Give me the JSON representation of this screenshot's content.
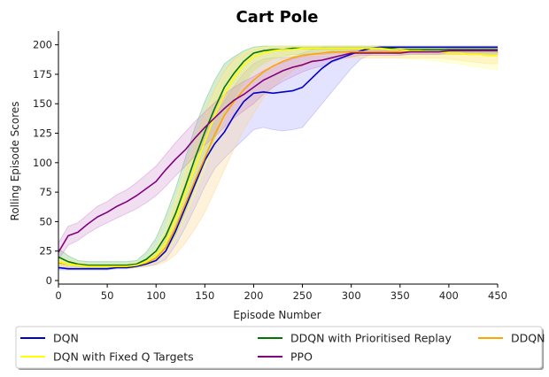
{
  "chart_data": {
    "type": "line",
    "title": "Cart Pole",
    "xlabel": "Episode Number",
    "ylabel": "Rolling Episode Scores",
    "xlim": [
      0,
      450
    ],
    "ylim": [
      -3,
      211
    ],
    "xticks": [
      0,
      50,
      100,
      150,
      200,
      250,
      300,
      350,
      400,
      450
    ],
    "yticks": [
      0,
      25,
      50,
      75,
      100,
      125,
      150,
      175,
      200
    ],
    "grid": false,
    "legend_position": "bottom",
    "series": [
      {
        "name": "DQN",
        "color": "#0000cc",
        "band_color": "#9999ff",
        "x": [
          0,
          10,
          20,
          30,
          40,
          50,
          60,
          70,
          80,
          90,
          100,
          110,
          120,
          130,
          140,
          150,
          160,
          170,
          180,
          190,
          200,
          210,
          220,
          230,
          240,
          250,
          260,
          270,
          280,
          290,
          300,
          310,
          320,
          330,
          340,
          350,
          360,
          370,
          380,
          390,
          400,
          410,
          420,
          430,
          440,
          450
        ],
        "y": [
          11,
          10,
          10,
          10,
          10,
          10,
          11,
          11,
          12,
          14,
          17,
          25,
          42,
          62,
          82,
          102,
          116,
          126,
          140,
          152,
          159,
          160,
          159,
          160,
          161,
          164,
          172,
          180,
          186,
          189,
          192,
          195,
          197,
          198,
          198,
          198,
          198,
          198,
          198,
          198,
          198,
          198,
          198,
          198,
          198,
          198
        ],
        "lower": [
          9,
          9,
          9,
          9,
          9,
          9,
          10,
          10,
          11,
          12,
          14,
          18,
          30,
          45,
          62,
          80,
          95,
          104,
          112,
          120,
          128,
          130,
          128,
          127,
          128,
          130,
          140,
          150,
          160,
          170,
          180,
          188,
          192,
          195,
          196,
          196,
          196,
          196,
          196,
          196,
          196,
          196,
          196,
          196,
          196,
          196
        ],
        "upper": [
          13,
          12,
          12,
          12,
          12,
          12,
          13,
          13,
          14,
          17,
          22,
          35,
          58,
          82,
          104,
          124,
          140,
          152,
          165,
          176,
          184,
          188,
          189,
          189,
          190,
          193,
          196,
          198,
          199,
          199,
          199,
          199,
          199,
          199,
          199,
          199,
          199,
          199,
          199,
          199,
          199,
          199,
          199,
          199,
          199,
          199
        ]
      },
      {
        "name": "DDQN with Prioritised Replay",
        "color": "#007700",
        "band_color": "#66bb66",
        "x": [
          0,
          10,
          20,
          30,
          40,
          50,
          60,
          70,
          80,
          90,
          100,
          110,
          120,
          130,
          140,
          150,
          160,
          170,
          180,
          190,
          200,
          210,
          220,
          230,
          240,
          250,
          260,
          270,
          280,
          290,
          300,
          310,
          320,
          330,
          340,
          350,
          360,
          370,
          380,
          390,
          400,
          410,
          420,
          430,
          440,
          450
        ],
        "y": [
          20,
          16,
          14,
          13,
          13,
          13,
          13,
          13,
          14,
          18,
          25,
          38,
          57,
          80,
          104,
          126,
          146,
          164,
          176,
          186,
          193,
          195,
          196,
          196,
          197,
          197,
          197,
          197,
          197,
          197,
          197,
          197,
          197,
          197,
          197,
          196,
          196,
          196,
          196,
          196,
          196,
          196,
          196,
          196,
          196,
          196
        ],
        "lower": [
          14,
          12,
          11,
          11,
          11,
          11,
          11,
          11,
          12,
          14,
          17,
          25,
          38,
          58,
          80,
          100,
          120,
          140,
          155,
          168,
          178,
          184,
          188,
          190,
          192,
          192,
          193,
          193,
          193,
          193,
          193,
          193,
          193,
          193,
          193,
          192,
          192,
          192,
          192,
          192,
          192,
          192,
          192,
          192,
          192,
          192
        ],
        "upper": [
          27,
          21,
          17,
          16,
          16,
          16,
          16,
          16,
          17,
          24,
          36,
          55,
          78,
          104,
          130,
          152,
          170,
          184,
          190,
          195,
          198,
          199,
          199,
          199,
          199,
          199,
          199,
          199,
          199,
          199,
          199,
          199,
          199,
          199,
          199,
          199,
          199,
          199,
          199,
          199,
          199,
          199,
          199,
          199,
          199,
          199
        ]
      },
      {
        "name": "DDQN",
        "color": "#ffa500",
        "band_color": "#ffd27f",
        "x": [
          0,
          10,
          20,
          30,
          40,
          50,
          60,
          70,
          80,
          90,
          100,
          110,
          120,
          130,
          140,
          150,
          160,
          170,
          180,
          190,
          200,
          210,
          220,
          230,
          240,
          250,
          260,
          270,
          280,
          290,
          300,
          310,
          320,
          330,
          340,
          350,
          360,
          370,
          380,
          390,
          400,
          410,
          420,
          430,
          440,
          450
        ],
        "y": [
          15,
          14,
          13,
          12,
          12,
          12,
          12,
          12,
          13,
          15,
          19,
          28,
          45,
          65,
          85,
          104,
          124,
          140,
          152,
          162,
          170,
          177,
          182,
          186,
          189,
          191,
          192,
          193,
          194,
          194,
          194,
          194,
          194,
          194,
          194,
          194,
          194,
          194,
          194,
          194,
          193,
          193,
          192,
          192,
          191,
          191
        ],
        "lower": [
          12,
          11,
          11,
          10,
          10,
          10,
          10,
          10,
          11,
          12,
          13,
          16,
          22,
          32,
          44,
          58,
          76,
          94,
          112,
          128,
          142,
          155,
          164,
          172,
          178,
          182,
          185,
          187,
          188,
          188,
          189,
          189,
          189,
          189,
          189,
          189,
          189,
          189,
          189,
          189,
          188,
          187,
          186,
          185,
          184,
          184
        ],
        "upper": [
          19,
          17,
          15,
          14,
          14,
          14,
          14,
          14,
          15,
          18,
          26,
          42,
          66,
          92,
          118,
          142,
          162,
          178,
          188,
          193,
          196,
          198,
          199,
          199,
          199,
          199,
          199,
          199,
          199,
          199,
          199,
          199,
          199,
          199,
          199,
          199,
          199,
          199,
          199,
          199,
          199,
          199,
          199,
          199,
          199,
          199
        ]
      },
      {
        "name": "DQN with Fixed Q Targets",
        "color": "#ffff00",
        "band_color": "#ffff88",
        "x": [
          0,
          10,
          20,
          30,
          40,
          50,
          60,
          70,
          80,
          90,
          100,
          110,
          120,
          130,
          140,
          150,
          160,
          170,
          180,
          190,
          200,
          210,
          220,
          230,
          240,
          250,
          260,
          270,
          280,
          290,
          300,
          310,
          320,
          330,
          340,
          350,
          360,
          370,
          380,
          390,
          400,
          410,
          420,
          430,
          440,
          450
        ],
        "y": [
          16,
          14,
          13,
          12,
          12,
          12,
          12,
          12,
          13,
          16,
          21,
          32,
          52,
          74,
          96,
          118,
          140,
          158,
          172,
          183,
          190,
          193,
          195,
          196,
          196,
          197,
          197,
          197,
          197,
          197,
          197,
          197,
          197,
          197,
          196,
          196,
          195,
          195,
          194,
          194,
          193,
          193,
          192,
          192,
          191,
          191
        ],
        "lower": [
          13,
          12,
          11,
          10,
          10,
          10,
          10,
          10,
          11,
          13,
          16,
          22,
          36,
          54,
          74,
          96,
          118,
          138,
          154,
          168,
          178,
          184,
          188,
          190,
          191,
          191,
          191,
          191,
          191,
          191,
          191,
          190,
          190,
          190,
          189,
          189,
          188,
          188,
          187,
          186,
          185,
          184,
          182,
          181,
          180,
          179
        ],
        "upper": [
          20,
          17,
          15,
          14,
          14,
          14,
          14,
          14,
          15,
          19,
          27,
          44,
          68,
          94,
          118,
          140,
          160,
          176,
          186,
          193,
          197,
          198,
          199,
          199,
          199,
          199,
          199,
          199,
          199,
          199,
          199,
          199,
          199,
          199,
          199,
          199,
          199,
          199,
          199,
          199,
          199,
          199,
          199,
          199,
          199,
          199
        ]
      },
      {
        "name": "PPO",
        "color": "#800080",
        "band_color": "#cc88cc",
        "x": [
          0,
          10,
          20,
          30,
          40,
          50,
          60,
          70,
          80,
          90,
          100,
          110,
          120,
          130,
          140,
          150,
          160,
          170,
          180,
          190,
          200,
          210,
          220,
          230,
          240,
          250,
          260,
          270,
          280,
          290,
          300,
          310,
          320,
          330,
          340,
          350,
          360,
          370,
          380,
          390,
          400,
          410,
          420,
          430,
          440,
          450
        ],
        "y": [
          24,
          38,
          41,
          48,
          54,
          58,
          63,
          67,
          72,
          78,
          84,
          94,
          103,
          111,
          121,
          130,
          138,
          146,
          153,
          158,
          164,
          170,
          174,
          178,
          181,
          183,
          186,
          187,
          189,
          191,
          193,
          193,
          193,
          193,
          193,
          193,
          194,
          194,
          194,
          194,
          195,
          195,
          195,
          195,
          195,
          195
        ],
        "lower": [
          18,
          30,
          34,
          40,
          45,
          49,
          53,
          57,
          61,
          66,
          72,
          80,
          89,
          97,
          106,
          115,
          122,
          130,
          138,
          144,
          150,
          158,
          164,
          169,
          173,
          177,
          180,
          182,
          185,
          188,
          190,
          191,
          191,
          191,
          191,
          191,
          192,
          192,
          192,
          192,
          193,
          193,
          193,
          193,
          193,
          193
        ],
        "upper": [
          32,
          46,
          49,
          56,
          63,
          67,
          73,
          77,
          83,
          90,
          97,
          107,
          117,
          126,
          135,
          143,
          151,
          158,
          164,
          169,
          173,
          178,
          182,
          185,
          188,
          190,
          192,
          192,
          193,
          194,
          195,
          195,
          195,
          195,
          195,
          195,
          196,
          196,
          196,
          196,
          197,
          197,
          197,
          197,
          197,
          197
        ]
      }
    ]
  }
}
